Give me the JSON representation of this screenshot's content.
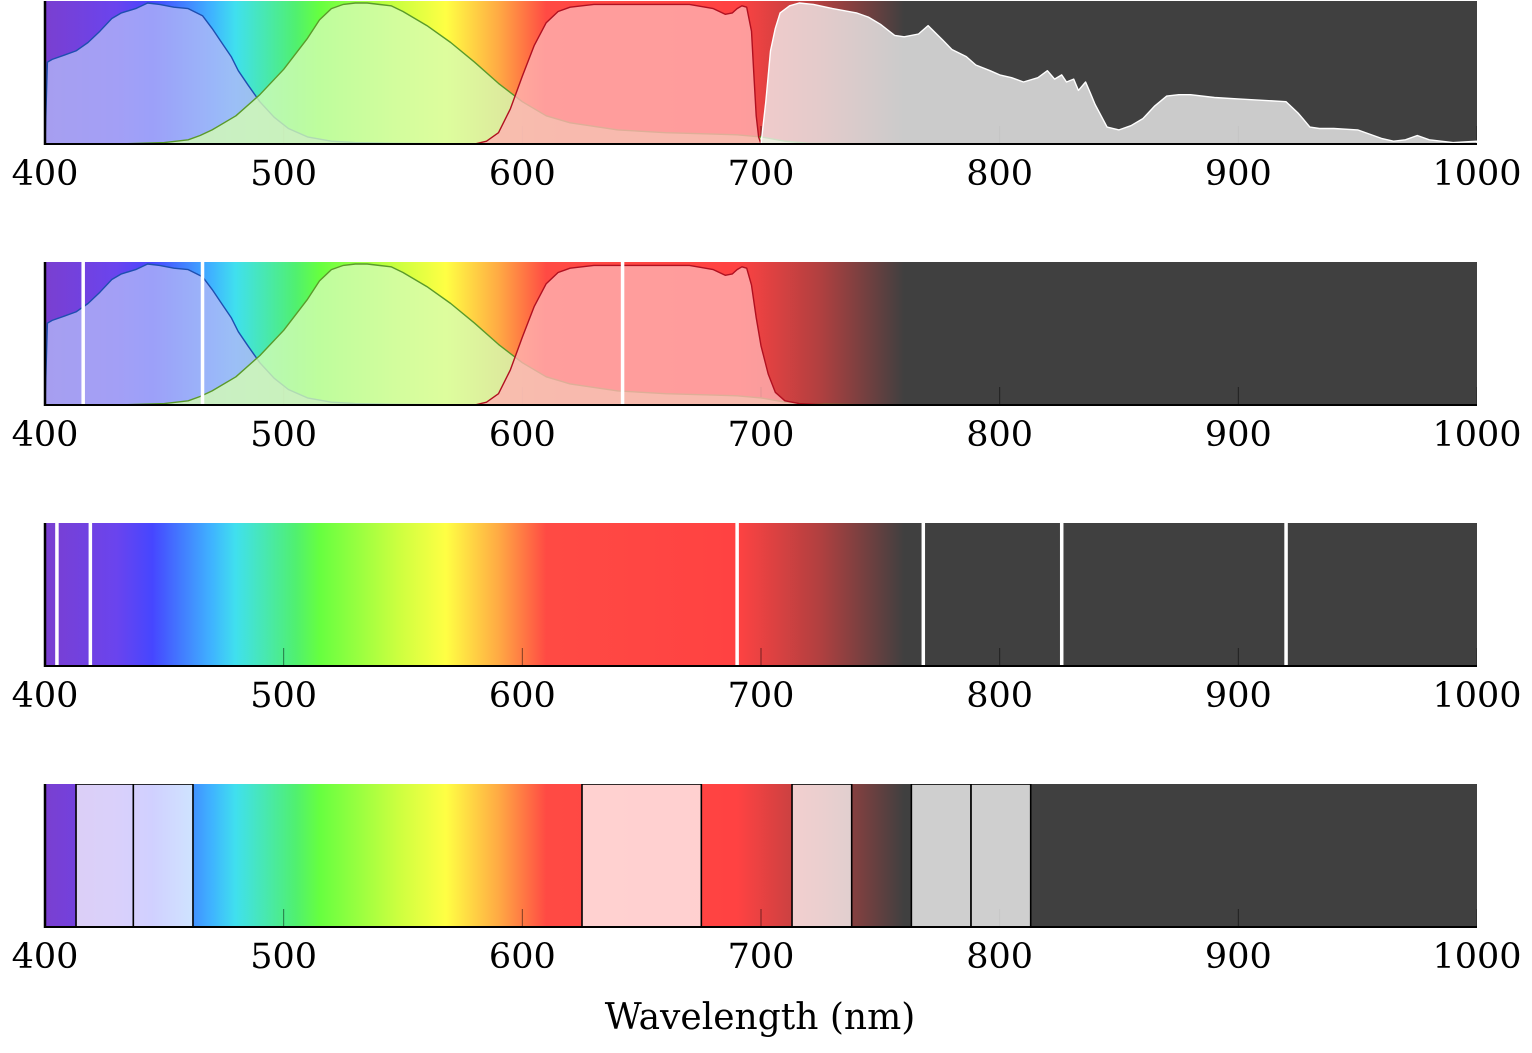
{
  "chart_data": {
    "type": "area",
    "xlabel": "Wavelength (nm)",
    "xlim": [
      400,
      1000
    ],
    "xticks": [
      400,
      500,
      600,
      700,
      800,
      900,
      1000
    ],
    "background": {
      "type": "visible-spectrum gradient fading to dark gray beyond ~760 nm",
      "stops": [
        {
          "nm": 400,
          "color": "#7a3fd0"
        },
        {
          "nm": 430,
          "color": "#6a44ee"
        },
        {
          "nm": 445,
          "color": "#4646ff"
        },
        {
          "nm": 470,
          "color": "#3fb4ff"
        },
        {
          "nm": 480,
          "color": "#40e0ee"
        },
        {
          "nm": 505,
          "color": "#50f070"
        },
        {
          "nm": 515,
          "color": "#66ff40"
        },
        {
          "nm": 548,
          "color": "#ccff40"
        },
        {
          "nm": 568,
          "color": "#ffff44"
        },
        {
          "nm": 590,
          "color": "#ffaa44"
        },
        {
          "nm": 610,
          "color": "#ff4a44"
        },
        {
          "nm": 690,
          "color": "#ff4242"
        },
        {
          "nm": 725,
          "color": "#b04040"
        },
        {
          "nm": 760,
          "color": "#404040"
        },
        {
          "nm": 1000,
          "color": "#404040"
        }
      ]
    },
    "panels": [
      {
        "id": "sensor-and-infrared-response",
        "series": [
          {
            "kind": "blue",
            "fill": "#b2b6f8",
            "fill_opacity": 0.8,
            "stroke": "#1e4fb0",
            "x": [
              400,
              401,
              403,
              408,
              413,
              418,
              423,
              428,
              432,
              438,
              443,
              448,
              454,
              460,
              466,
              470,
              474,
              478,
              481,
              485,
              490,
              496,
              502,
              510,
              520,
              530,
              545,
              560,
              580
            ],
            "y": [
              0.0,
              0.58,
              0.6,
              0.63,
              0.66,
              0.72,
              0.8,
              0.89,
              0.93,
              0.96,
              1.0,
              0.99,
              0.97,
              0.96,
              0.91,
              0.82,
              0.72,
              0.62,
              0.52,
              0.42,
              0.3,
              0.19,
              0.11,
              0.05,
              0.02,
              0.01,
              0.005,
              0.003,
              0.0
            ]
          },
          {
            "kind": "green",
            "fill": "#d4fcb4",
            "fill_opacity": 0.8,
            "stroke": "#5a9a2a",
            "x": [
              400,
              430,
              450,
              460,
              465,
              470,
              480,
              490,
              500,
              510,
              515,
              520,
              525,
              530,
              535,
              545,
              550,
              560,
              570,
              580,
              590,
              600,
              610,
              620,
              640,
              660,
              680,
              690,
              700,
              710,
              720,
              760,
              1000
            ],
            "y": [
              0.0,
              0.0,
              0.01,
              0.03,
              0.06,
              0.1,
              0.2,
              0.35,
              0.53,
              0.75,
              0.88,
              0.96,
              0.99,
              1.0,
              1.0,
              0.98,
              0.94,
              0.84,
              0.72,
              0.58,
              0.43,
              0.3,
              0.2,
              0.15,
              0.1,
              0.08,
              0.07,
              0.065,
              0.05,
              0.02,
              0.005,
              0.0,
              0.0
            ]
          },
          {
            "kind": "red",
            "fill": "#ffb3b3",
            "fill_opacity": 0.8,
            "stroke": "#b01020",
            "x": [
              400,
              580,
              585,
              590,
              595,
              600,
              605,
              610,
              615,
              620,
              625,
              630,
              640,
              650,
              660,
              670,
              680,
              685,
              688,
              690,
              692,
              694,
              696,
              697,
              698,
              699,
              700
            ],
            "y": [
              0.0,
              0.0,
              0.02,
              0.08,
              0.25,
              0.48,
              0.7,
              0.86,
              0.94,
              0.97,
              0.98,
              0.99,
              0.99,
              0.99,
              0.99,
              0.99,
              0.96,
              0.92,
              0.93,
              0.96,
              0.98,
              0.97,
              0.8,
              0.5,
              0.2,
              0.05,
              0.0
            ]
          },
          {
            "kind": "infrared",
            "fill": "#f2f2f2",
            "fill_opacity": 0.78,
            "stroke": "#ffffff",
            "x": [
              700,
              702,
              704,
              706,
              708,
              712,
              716,
              722,
              730,
              740,
              745,
              750,
              756,
              760,
              766,
              770,
              776,
              780,
              786,
              790,
              796,
              800,
              805,
              810,
              816,
              820,
              823,
              826,
              828,
              831,
              833,
              836,
              838,
              840,
              845,
              850,
              855,
              860,
              865,
              870,
              875,
              880,
              890,
              900,
              910,
              920,
              925,
              927,
              930,
              934,
              940,
              950,
              960,
              965,
              970,
              975,
              980,
              990,
              1000
            ],
            "y": [
              0.0,
              0.3,
              0.66,
              0.82,
              0.93,
              0.98,
              1.0,
              0.99,
              0.96,
              0.93,
              0.9,
              0.85,
              0.77,
              0.76,
              0.78,
              0.84,
              0.74,
              0.67,
              0.62,
              0.56,
              0.52,
              0.49,
              0.47,
              0.44,
              0.47,
              0.52,
              0.46,
              0.49,
              0.44,
              0.46,
              0.38,
              0.44,
              0.36,
              0.28,
              0.12,
              0.1,
              0.13,
              0.18,
              0.27,
              0.34,
              0.35,
              0.35,
              0.33,
              0.32,
              0.31,
              0.3,
              0.22,
              0.18,
              0.12,
              0.11,
              0.11,
              0.1,
              0.04,
              0.02,
              0.03,
              0.06,
              0.03,
              0.01,
              0.02
            ]
          }
        ]
      },
      {
        "id": "sensor-response-with-white-lines",
        "series": [
          {
            "kind": "blue",
            "fill": "#b2b6f8",
            "fill_opacity": 0.8,
            "stroke": "#1e4fb0",
            "x": [
              400,
              401,
              403,
              408,
              413,
              418,
              423,
              428,
              432,
              438,
              443,
              448,
              454,
              460,
              466,
              470,
              474,
              478,
              481,
              485,
              490,
              496,
              502,
              510,
              520,
              530,
              545,
              560,
              580
            ],
            "y": [
              0.0,
              0.58,
              0.6,
              0.63,
              0.66,
              0.72,
              0.8,
              0.89,
              0.93,
              0.96,
              1.0,
              0.99,
              0.97,
              0.96,
              0.91,
              0.82,
              0.72,
              0.62,
              0.52,
              0.42,
              0.3,
              0.19,
              0.11,
              0.05,
              0.02,
              0.01,
              0.005,
              0.003,
              0.0
            ]
          },
          {
            "kind": "green",
            "fill": "#d4fcb4",
            "fill_opacity": 0.8,
            "stroke": "#5a9a2a",
            "x": [
              400,
              430,
              450,
              460,
              465,
              470,
              480,
              490,
              500,
              510,
              515,
              520,
              525,
              530,
              535,
              545,
              550,
              560,
              570,
              580,
              590,
              600,
              610,
              620,
              640,
              660,
              680,
              690,
              700,
              710,
              720,
              760,
              1000
            ],
            "y": [
              0.0,
              0.0,
              0.01,
              0.03,
              0.06,
              0.1,
              0.2,
              0.35,
              0.53,
              0.75,
              0.88,
              0.96,
              0.99,
              1.0,
              1.0,
              0.98,
              0.94,
              0.84,
              0.72,
              0.58,
              0.43,
              0.3,
              0.2,
              0.15,
              0.1,
              0.08,
              0.07,
              0.065,
              0.05,
              0.02,
              0.005,
              0.0,
              0.0
            ]
          },
          {
            "kind": "red",
            "fill": "#ffb3b3",
            "fill_opacity": 0.8,
            "stroke": "#b01020",
            "x": [
              400,
              580,
              585,
              590,
              595,
              600,
              605,
              610,
              615,
              620,
              625,
              630,
              640,
              650,
              660,
              670,
              680,
              685,
              688,
              690,
              692,
              694,
              696,
              698,
              700,
              703,
              706,
              710,
              716,
              722,
              730,
              745,
              760,
              1000
            ],
            "y": [
              0.0,
              0.0,
              0.02,
              0.08,
              0.25,
              0.48,
              0.7,
              0.86,
              0.94,
              0.97,
              0.98,
              0.99,
              0.99,
              0.99,
              0.99,
              0.99,
              0.96,
              0.92,
              0.93,
              0.96,
              0.98,
              0.97,
              0.85,
              0.62,
              0.42,
              0.22,
              0.09,
              0.03,
              0.01,
              0.005,
              0.0,
              0.0,
              0.0,
              0.0
            ]
          }
        ],
        "white_lines_nm": [
          416,
          466,
          642
        ]
      },
      {
        "id": "spectrum-with-white-lines",
        "series": [],
        "white_lines_nm": [
          405,
          419,
          690,
          768,
          826,
          920
        ]
      },
      {
        "id": "spectrum-with-bands",
        "bands": [
          {
            "from": 413,
            "to": 437,
            "fill": "#ffffff",
            "fill_opacity": 0.75
          },
          {
            "from": 437,
            "to": 462,
            "fill": "#ffffff",
            "fill_opacity": 0.75
          },
          {
            "from": 625,
            "to": 675,
            "fill": "#ffffff",
            "fill_opacity": 0.75
          },
          {
            "from": 713,
            "to": 738,
            "fill": "#ffffff",
            "fill_opacity": 0.75
          },
          {
            "from": 763,
            "to": 788,
            "fill": "#ffffff",
            "fill_opacity": 0.75
          },
          {
            "from": 788,
            "to": 813,
            "fill": "#ffffff",
            "fill_opacity": 0.75
          }
        ]
      }
    ]
  }
}
